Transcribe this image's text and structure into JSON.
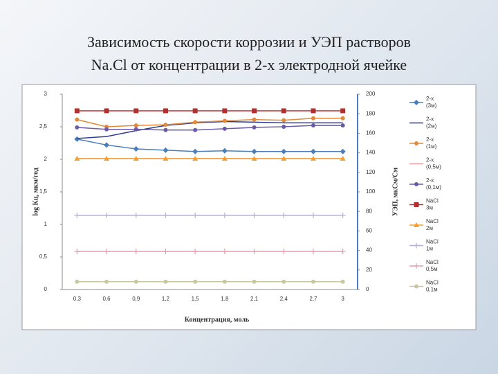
{
  "title_lines": [
    "Зависимость скорости коррозии и УЭП растворов",
    "Na.Cl от концентрации в 2-х электродной ячейке"
  ],
  "chart_data": {
    "type": "line",
    "xlabel": "Концентрация, моль",
    "ylabel": "log Кц, мкм/год",
    "y2label": "УЭП, мкСм/См",
    "categories": [
      "0,3",
      "0,6",
      "0,9",
      "1,2",
      "1,5",
      "1,8",
      "2,1",
      "2,4",
      "2,7",
      "3"
    ],
    "ylim": [
      0,
      3
    ],
    "yticks": [
      0,
      {
        "value": 0.5,
        "label": "0,5"
      },
      1,
      {
        "value": 1.5,
        "label": "1,5"
      },
      2,
      {
        "value": 2.5,
        "label": "2,5"
      },
      3
    ],
    "y2lim": [
      0,
      200
    ],
    "y2ticks": [
      0,
      20,
      40,
      60,
      80,
      100,
      120,
      140,
      160,
      180,
      200
    ],
    "series": [
      {
        "name": "2-х (3м)",
        "color": "#4a7ebb",
        "marker": "diamond",
        "values": [
          2.31,
          2.22,
          2.16,
          2.14,
          2.12,
          2.13,
          2.12,
          2.12,
          2.12,
          2.12
        ]
      },
      {
        "name": "2-х (2м)",
        "color": "#2e3d8f",
        "marker": "none",
        "values": [
          2.32,
          2.35,
          2.44,
          2.52,
          2.56,
          2.58,
          2.57,
          2.56,
          2.56,
          2.56
        ]
      },
      {
        "name": "2-х (1м)",
        "color": "#e08a3a",
        "marker": "circle",
        "values": [
          2.61,
          2.5,
          2.52,
          2.53,
          2.57,
          2.59,
          2.61,
          2.6,
          2.63,
          2.63
        ]
      },
      {
        "name": "2-х (0,5м)",
        "color": "#e8a0a0",
        "marker": "none",
        "values": [
          2.01,
          2.01,
          2.01,
          2.01,
          2.01,
          2.01,
          2.01,
          2.01,
          2.01,
          2.01
        ]
      },
      {
        "name": "2-х (0,1м)",
        "color": "#6a5aa8",
        "marker": "circle",
        "values": [
          2.49,
          2.46,
          2.46,
          2.45,
          2.45,
          2.47,
          2.49,
          2.5,
          2.52,
          2.52
        ]
      },
      {
        "name": "NaCl 3м",
        "color": "#b03030",
        "marker": "square",
        "axis": "y2",
        "values": [
          183,
          183,
          183,
          183,
          183,
          183,
          183,
          183,
          183,
          183
        ]
      },
      {
        "name": "NaCl 2м",
        "color": "#f5a030",
        "marker": "triangle",
        "axis": "y2",
        "values": [
          134,
          134,
          134,
          134,
          134,
          134,
          134,
          134,
          134,
          134
        ]
      },
      {
        "name": "NaCl 1м",
        "color": "#b8b0d0",
        "marker": "cross",
        "axis": "y2",
        "values": [
          76,
          76,
          76,
          76,
          76,
          76,
          76,
          76,
          76,
          76
        ]
      },
      {
        "name": "NaCl 0,5м",
        "color": "#e0a0b0",
        "marker": "cross",
        "axis": "y2",
        "values": [
          39,
          39,
          39,
          39,
          39,
          39,
          39,
          39,
          39,
          39
        ]
      },
      {
        "name": "NaCl 0,1м",
        "color": "#c8c8a0",
        "marker": "circle",
        "axis": "y2",
        "values": [
          8,
          8,
          8,
          8,
          8,
          8,
          8,
          8,
          8,
          8
        ]
      }
    ]
  }
}
